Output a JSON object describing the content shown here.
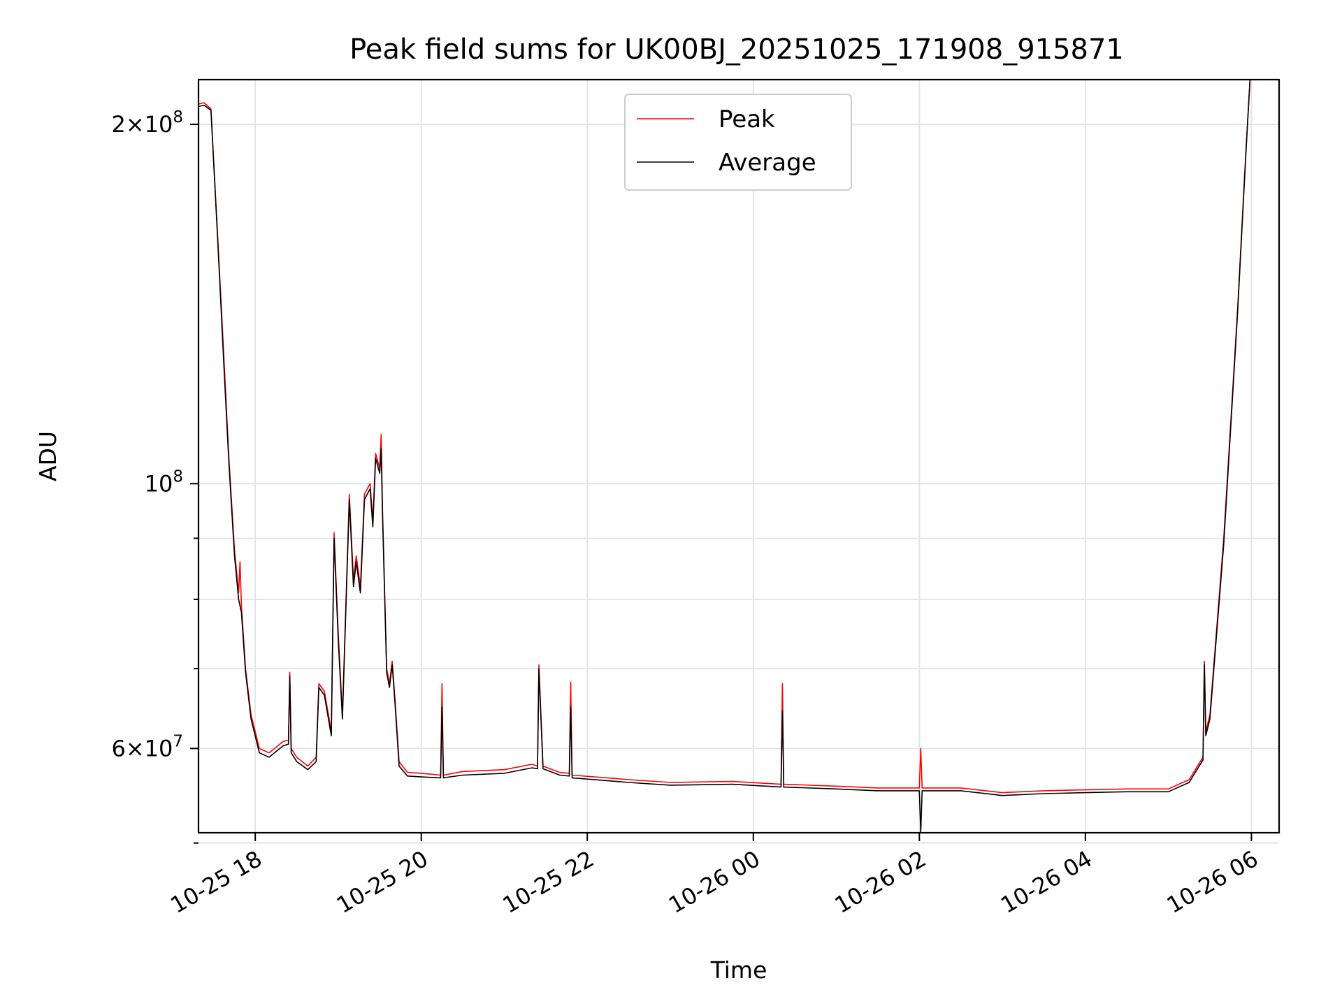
{
  "chart_data": {
    "type": "line",
    "title": "Peak field sums for UK00BJ_20251025_171908_915871",
    "xlabel": "Time",
    "ylabel": "ADU",
    "yscale": "log",
    "xlim": [
      "10-25 17:19",
      "10-26 06:20"
    ],
    "ylim": [
      51000000,
      218000000
    ],
    "grid": true,
    "legend": "upper center",
    "x_ticks": [
      "10-25 18",
      "10-25 20",
      "10-25 22",
      "10-26 00",
      "10-26 02",
      "10-26 04",
      "10-26 06"
    ],
    "y_major_ticks": [
      {
        "value": 200000000,
        "mantissa": "2",
        "exponent": "8"
      },
      {
        "value": 100000000,
        "mantissa": "",
        "exponent": "8"
      },
      {
        "value": 60000000,
        "mantissa": "6",
        "exponent": "7"
      }
    ],
    "y_minor_ticks": [
      90000000,
      80000000,
      70000000,
      50000000
    ],
    "series": [
      {
        "name": "Peak",
        "color": "#ff0000",
        "points": [
          [
            "10-25 17:19",
            208000000
          ],
          [
            "10-25 17:23",
            208500000
          ],
          [
            "10-25 17:28",
            206000000
          ],
          [
            "10-25 17:33",
            160000000
          ],
          [
            "10-25 17:37",
            130000000
          ],
          [
            "10-25 17:41",
            105000000
          ],
          [
            "10-25 17:45",
            88000000
          ],
          [
            "10-25 17:48",
            81000000
          ],
          [
            "10-25 17:49",
            86000000
          ],
          [
            "10-25 17:50",
            79000000
          ],
          [
            "10-25 17:53",
            70000000
          ],
          [
            "10-25 17:57",
            64000000
          ],
          [
            "10-25 18:03",
            60000000
          ],
          [
            "10-25 18:10",
            59500000
          ],
          [
            "10-25 18:20",
            60800000
          ],
          [
            "10-25 18:24",
            61000000
          ],
          [
            "10-25 18:25",
            69500000
          ],
          [
            "10-25 18:26",
            60000000
          ],
          [
            "10-25 18:30",
            59000000
          ],
          [
            "10-25 18:38",
            58000000
          ],
          [
            "10-25 18:44",
            59000000
          ],
          [
            "10-25 18:46",
            68000000
          ],
          [
            "10-25 18:50",
            67000000
          ],
          [
            "10-25 18:55",
            62000000
          ],
          [
            "10-25 18:57",
            91000000
          ],
          [
            "10-25 19:00",
            75000000
          ],
          [
            "10-25 19:03",
            64000000
          ],
          [
            "10-25 19:08",
            98000000
          ],
          [
            "10-25 19:11",
            83000000
          ],
          [
            "10-25 19:13",
            87000000
          ],
          [
            "10-25 19:16",
            82000000
          ],
          [
            "10-25 19:19",
            98000000
          ],
          [
            "10-25 19:23",
            100000000
          ],
          [
            "10-25 19:25",
            93000000
          ],
          [
            "10-25 19:27",
            106000000
          ],
          [
            "10-25 19:30",
            103000000
          ],
          [
            "10-25 19:31",
            110000000
          ],
          [
            "10-25 19:32",
            95000000
          ],
          [
            "10-25 19:35",
            70000000
          ],
          [
            "10-25 19:37",
            68000000
          ],
          [
            "10-25 19:39",
            71000000
          ],
          [
            "10-25 19:41",
            66000000
          ],
          [
            "10-25 19:44",
            58500000
          ],
          [
            "10-25 19:50",
            57300000
          ],
          [
            "10-25 20:00",
            57200000
          ],
          [
            "10-25 20:14",
            57000000
          ],
          [
            "10-25 20:15",
            68000000
          ],
          [
            "10-25 20:16",
            57000000
          ],
          [
            "10-25 20:30",
            57400000
          ],
          [
            "10-25 21:00",
            57600000
          ],
          [
            "10-25 21:20",
            58200000
          ],
          [
            "10-25 21:24",
            58000000
          ],
          [
            "10-25 21:25",
            70500000
          ],
          [
            "10-25 21:28",
            58000000
          ],
          [
            "10-25 21:40",
            57300000
          ],
          [
            "10-25 21:47",
            57200000
          ],
          [
            "10-25 21:48",
            68200000
          ],
          [
            "10-25 21:49",
            57000000
          ],
          [
            "10-25 22:30",
            56500000
          ],
          [
            "10-25 23:00",
            56200000
          ],
          [
            "10-25 23:45",
            56300000
          ],
          [
            "10-26 00:20",
            56000000
          ],
          [
            "10-26 00:21",
            68000000
          ],
          [
            "10-26 00:22",
            56000000
          ],
          [
            "10-26 01:00",
            55800000
          ],
          [
            "10-26 01:30",
            55600000
          ],
          [
            "10-26 02:00",
            55600000
          ],
          [
            "10-26 02:01",
            60000000
          ],
          [
            "10-26 02:02",
            55600000
          ],
          [
            "10-26 02:30",
            55600000
          ],
          [
            "10-26 03:00",
            55100000
          ],
          [
            "10-26 03:30",
            55300000
          ],
          [
            "10-26 04:00",
            55400000
          ],
          [
            "10-26 04:30",
            55500000
          ],
          [
            "10-26 05:00",
            55500000
          ],
          [
            "10-26 05:15",
            56500000
          ],
          [
            "10-26 05:25",
            59000000
          ],
          [
            "10-26 05:26",
            71000000
          ],
          [
            "10-26 05:27",
            62000000
          ],
          [
            "10-26 05:30",
            64000000
          ],
          [
            "10-26 05:40",
            90000000
          ],
          [
            "10-26 05:50",
            140000000
          ],
          [
            "10-26 05:56",
            190000000
          ],
          [
            "10-26 05:59",
            218000000
          ]
        ]
      },
      {
        "name": "Average",
        "color": "#000000",
        "points": [
          [
            "10-25 17:19",
            207000000
          ],
          [
            "10-25 17:23",
            207500000
          ],
          [
            "10-25 17:28",
            205500000
          ],
          [
            "10-25 17:33",
            159000000
          ],
          [
            "10-25 17:37",
            128000000
          ],
          [
            "10-25 17:41",
            104000000
          ],
          [
            "10-25 17:45",
            87000000
          ],
          [
            "10-25 17:48",
            80000000
          ],
          [
            "10-25 17:50",
            78000000
          ],
          [
            "10-25 17:53",
            69500000
          ],
          [
            "10-25 17:57",
            63500000
          ],
          [
            "10-25 18:03",
            59500000
          ],
          [
            "10-25 18:10",
            59000000
          ],
          [
            "10-25 18:20",
            60300000
          ],
          [
            "10-25 18:24",
            60500000
          ],
          [
            "10-25 18:25",
            69000000
          ],
          [
            "10-25 18:26",
            59500000
          ],
          [
            "10-25 18:30",
            58500000
          ],
          [
            "10-25 18:38",
            57600000
          ],
          [
            "10-25 18:44",
            58500000
          ],
          [
            "10-25 18:46",
            67500000
          ],
          [
            "10-25 18:50",
            66500000
          ],
          [
            "10-25 18:55",
            61500000
          ],
          [
            "10-25 18:57",
            90000000
          ],
          [
            "10-25 19:00",
            74000000
          ],
          [
            "10-25 19:03",
            63500000
          ],
          [
            "10-25 19:08",
            97000000
          ],
          [
            "10-25 19:11",
            82000000
          ],
          [
            "10-25 19:13",
            86000000
          ],
          [
            "10-25 19:16",
            81000000
          ],
          [
            "10-25 19:19",
            97000000
          ],
          [
            "10-25 19:23",
            99000000
          ],
          [
            "10-25 19:25",
            92000000
          ],
          [
            "10-25 19:27",
            105000000
          ],
          [
            "10-25 19:30",
            102000000
          ],
          [
            "10-25 19:31",
            107000000
          ],
          [
            "10-25 19:32",
            94000000
          ],
          [
            "10-25 19:35",
            69500000
          ],
          [
            "10-25 19:37",
            67500000
          ],
          [
            "10-25 19:39",
            70500000
          ],
          [
            "10-25 19:41",
            65500000
          ],
          [
            "10-25 19:44",
            58000000
          ],
          [
            "10-25 19:50",
            56900000
          ],
          [
            "10-25 20:00",
            56800000
          ],
          [
            "10-25 20:14",
            56700000
          ],
          [
            "10-25 20:15",
            65000000
          ],
          [
            "10-25 20:16",
            56700000
          ],
          [
            "10-25 20:30",
            57000000
          ],
          [
            "10-25 21:00",
            57200000
          ],
          [
            "10-25 21:20",
            57800000
          ],
          [
            "10-25 21:24",
            57700000
          ],
          [
            "10-25 21:25",
            70000000
          ],
          [
            "10-25 21:28",
            57700000
          ],
          [
            "10-25 21:40",
            57000000
          ],
          [
            "10-25 21:47",
            56900000
          ],
          [
            "10-25 21:48",
            65000000
          ],
          [
            "10-25 21:49",
            56700000
          ],
          [
            "10-25 22:30",
            56200000
          ],
          [
            "10-25 23:00",
            55900000
          ],
          [
            "10-25 23:45",
            56000000
          ],
          [
            "10-26 00:20",
            55700000
          ],
          [
            "10-26 00:21",
            64500000
          ],
          [
            "10-26 00:22",
            55700000
          ],
          [
            "10-26 01:00",
            55500000
          ],
          [
            "10-26 01:30",
            55300000
          ],
          [
            "10-26 02:00",
            55300000
          ],
          [
            "10-26 02:01",
            51000000
          ],
          [
            "10-26 02:02",
            55300000
          ],
          [
            "10-26 02:30",
            55300000
          ],
          [
            "10-26 03:00",
            54800000
          ],
          [
            "10-26 03:30",
            55000000
          ],
          [
            "10-26 04:00",
            55100000
          ],
          [
            "10-26 04:30",
            55200000
          ],
          [
            "10-26 05:00",
            55200000
          ],
          [
            "10-26 05:15",
            56200000
          ],
          [
            "10-26 05:25",
            58700000
          ],
          [
            "10-26 05:26",
            70500000
          ],
          [
            "10-26 05:27",
            61500000
          ],
          [
            "10-26 05:30",
            63500000
          ],
          [
            "10-26 05:40",
            89000000
          ],
          [
            "10-26 05:50",
            139000000
          ],
          [
            "10-26 05:56",
            189000000
          ],
          [
            "10-26 05:59",
            218000000
          ]
        ]
      }
    ]
  }
}
